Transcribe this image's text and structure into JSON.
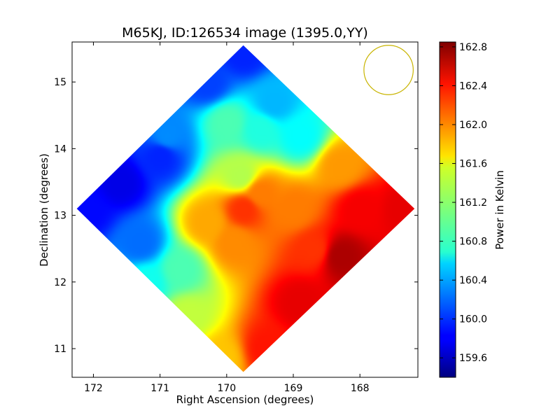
{
  "chart_data": {
    "type": "heatmap",
    "title": "M65KJ, ID:126534 image (1395.0,YY)",
    "xlabel": "Right Ascension (degrees)",
    "ylabel": "Declination (degrees)",
    "xlim": [
      172.32,
      167.13
    ],
    "ylim": [
      10.57,
      15.6
    ],
    "x_inverted": true,
    "x_ticks": [
      172,
      171,
      170,
      169,
      168
    ],
    "x_tick_labels": [
      "172",
      "171",
      "170",
      "169",
      "168"
    ],
    "y_ticks": [
      11,
      12,
      13,
      14,
      15
    ],
    "y_tick_labels": [
      "11",
      "12",
      "13",
      "14",
      "15"
    ],
    "colorbar": {
      "label": "Power in Kelvin",
      "colormap": "jet",
      "range": [
        159.4,
        162.85
      ],
      "ticks": [
        159.6,
        160.0,
        160.4,
        160.8,
        161.2,
        161.6,
        162.0,
        162.4,
        162.8
      ],
      "tick_labels": [
        "159.6",
        "160.0",
        "160.4",
        "160.8",
        "161.2",
        "161.6",
        "162.0",
        "162.4",
        "162.8"
      ]
    },
    "footprint": {
      "shape": "diamond",
      "vertices_ra_dec": [
        [
          169.75,
          15.55
        ],
        [
          172.25,
          13.1
        ],
        [
          169.75,
          10.65
        ],
        [
          167.18,
          13.1
        ]
      ]
    },
    "beam_circle": {
      "ra": 167.57,
      "dec": 15.18,
      "radius_ra_deg": 0.37,
      "radius_dec_deg": 0.37,
      "color": "#c8b400"
    },
    "field_samples": [
      {
        "ra": 171.6,
        "dec": 13.5,
        "value": 159.75
      },
      {
        "ra": 172.1,
        "dec": 13.1,
        "value": 159.85
      },
      {
        "ra": 171.0,
        "dec": 13.9,
        "value": 159.95
      },
      {
        "ra": 170.3,
        "dec": 15.0,
        "value": 160.05
      },
      {
        "ra": 169.75,
        "dec": 15.45,
        "value": 159.95
      },
      {
        "ra": 170.9,
        "dec": 14.2,
        "value": 160.3
      },
      {
        "ra": 171.3,
        "dec": 12.6,
        "value": 160.2
      },
      {
        "ra": 170.0,
        "dec": 14.4,
        "value": 160.95
      },
      {
        "ra": 169.5,
        "dec": 14.3,
        "value": 160.8
      },
      {
        "ra": 169.3,
        "dec": 14.7,
        "value": 160.45
      },
      {
        "ra": 168.9,
        "dec": 14.2,
        "value": 160.7
      },
      {
        "ra": 169.8,
        "dec": 13.6,
        "value": 161.3
      },
      {
        "ra": 170.7,
        "dec": 12.2,
        "value": 160.95
      },
      {
        "ra": 171.2,
        "dec": 12.0,
        "value": 160.75
      },
      {
        "ra": 170.6,
        "dec": 11.5,
        "value": 161.35
      },
      {
        "ra": 170.1,
        "dec": 10.85,
        "value": 161.75
      },
      {
        "ra": 169.9,
        "dec": 12.6,
        "value": 161.95
      },
      {
        "ra": 169.75,
        "dec": 13.1,
        "value": 162.25
      },
      {
        "ra": 169.5,
        "dec": 13.35,
        "value": 162.0
      },
      {
        "ra": 170.3,
        "dec": 12.9,
        "value": 161.85
      },
      {
        "ra": 169.0,
        "dec": 13.1,
        "value": 162.0
      },
      {
        "ra": 168.3,
        "dec": 13.75,
        "value": 161.9
      },
      {
        "ra": 168.7,
        "dec": 12.5,
        "value": 162.25
      },
      {
        "ra": 168.0,
        "dec": 13.1,
        "value": 162.45
      },
      {
        "ra": 167.35,
        "dec": 13.1,
        "value": 162.5
      },
      {
        "ra": 168.3,
        "dec": 12.4,
        "value": 162.7
      },
      {
        "ra": 168.9,
        "dec": 11.7,
        "value": 162.5
      },
      {
        "ra": 169.4,
        "dec": 11.0,
        "value": 162.35
      }
    ]
  }
}
